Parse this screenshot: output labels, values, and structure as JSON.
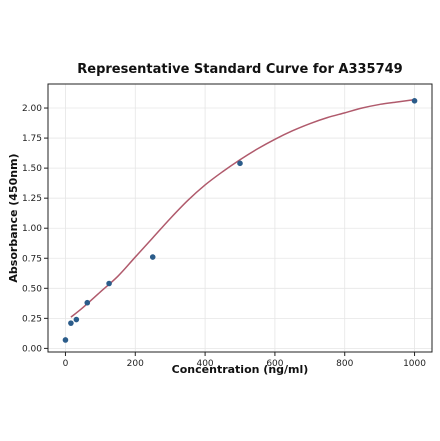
{
  "chart_data": {
    "type": "scatter",
    "title": "Representative Standard Curve for A335749",
    "xlabel": "Concentration (ng/ml)",
    "ylabel": "Absorbance (450nm)",
    "xlim": [
      -50,
      1050
    ],
    "ylim": [
      -0.03,
      2.2
    ],
    "xticks": [
      0,
      200,
      400,
      600,
      800,
      1000
    ],
    "xtick_labels": [
      "0",
      "200",
      "400",
      "600",
      "800",
      "1000"
    ],
    "yticks": [
      0.0,
      0.25,
      0.5,
      0.75,
      1.0,
      1.25,
      1.5,
      1.75,
      2.0
    ],
    "ytick_labels": [
      "0.00",
      "0.25",
      "0.50",
      "0.75",
      "1.00",
      "1.25",
      "1.50",
      "1.75",
      "2.00"
    ],
    "grid": true,
    "series": [
      {
        "kind": "points",
        "color": "#2b5c8a",
        "x": [
          0,
          15.6,
          31.25,
          62.5,
          125,
          250,
          500,
          1000
        ],
        "y": [
          0.07,
          0.21,
          0.24,
          0.38,
          0.54,
          0.76,
          1.54,
          2.06
        ]
      },
      {
        "kind": "fit-curve",
        "color": "#b05a6c",
        "x": [
          15.6,
          50,
          100,
          150,
          200,
          250,
          300,
          350,
          400,
          450,
          500,
          550,
          600,
          650,
          700,
          750,
          800,
          850,
          900,
          950,
          1000
        ],
        "y": [
          0.26,
          0.34,
          0.47,
          0.6,
          0.76,
          0.92,
          1.08,
          1.23,
          1.36,
          1.47,
          1.57,
          1.66,
          1.74,
          1.81,
          1.87,
          1.92,
          1.96,
          2.0,
          2.03,
          2.05,
          2.07
        ]
      }
    ]
  }
}
